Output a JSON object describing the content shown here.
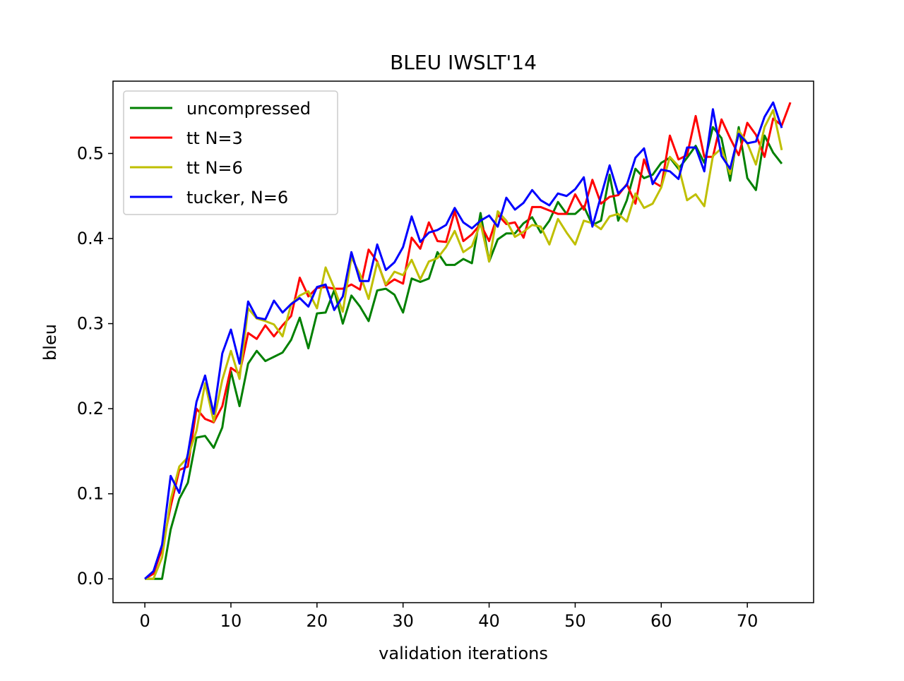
{
  "chart_data": {
    "type": "line",
    "title": "BLEU IWSLT'14",
    "xlabel": "validation iterations",
    "ylabel": "bleu",
    "xlim": [
      -3.7,
      77.7
    ],
    "ylim": [
      -0.028,
      0.585
    ],
    "xticks": [
      0,
      10,
      20,
      30,
      40,
      50,
      60,
      70
    ],
    "yticks": [
      0.0,
      0.1,
      0.2,
      0.3,
      0.4,
      0.5
    ],
    "xtick_labels": [
      "0",
      "10",
      "20",
      "30",
      "40",
      "50",
      "60",
      "70"
    ],
    "ytick_labels": [
      "0.0",
      "0.1",
      "0.2",
      "0.3",
      "0.4",
      "0.5"
    ],
    "grid": false,
    "legend_position": "top-left",
    "series": [
      {
        "name": "uncompressed",
        "color": "#008000",
        "values": [
          0.0,
          0.0,
          0.0,
          0.058,
          0.094,
          0.113,
          0.166,
          0.168,
          0.154,
          0.178,
          0.244,
          0.203,
          0.253,
          0.268,
          0.256,
          0.261,
          0.266,
          0.281,
          0.307,
          0.271,
          0.312,
          0.313,
          0.339,
          0.3,
          0.333,
          0.32,
          0.303,
          0.339,
          0.341,
          0.334,
          0.313,
          0.353,
          0.349,
          0.353,
          0.384,
          0.369,
          0.369,
          0.376,
          0.371,
          0.43,
          0.373,
          0.399,
          0.406,
          0.406,
          0.418,
          0.425,
          0.407,
          0.421,
          0.443,
          0.429,
          0.429,
          0.438,
          0.416,
          0.421,
          0.475,
          0.421,
          0.445,
          0.482,
          0.471,
          0.475,
          0.489,
          0.495,
          0.482,
          0.495,
          0.509,
          0.489,
          0.531,
          0.518,
          0.468,
          0.531,
          0.471,
          0.457,
          0.521,
          0.501,
          0.488
        ]
      },
      {
        "name": "tt N=3",
        "color": "#ff0000",
        "values": [
          0.0,
          0.006,
          0.035,
          0.085,
          0.128,
          0.132,
          0.2,
          0.188,
          0.184,
          0.203,
          0.248,
          0.241,
          0.289,
          0.282,
          0.298,
          0.285,
          0.298,
          0.309,
          0.354,
          0.332,
          0.342,
          0.343,
          0.341,
          0.341,
          0.346,
          0.34,
          0.387,
          0.373,
          0.345,
          0.352,
          0.347,
          0.401,
          0.388,
          0.419,
          0.397,
          0.396,
          0.432,
          0.397,
          0.405,
          0.417,
          0.397,
          0.428,
          0.417,
          0.419,
          0.401,
          0.437,
          0.437,
          0.433,
          0.429,
          0.429,
          0.452,
          0.434,
          0.469,
          0.441,
          0.449,
          0.451,
          0.464,
          0.441,
          0.493,
          0.467,
          0.461,
          0.521,
          0.493,
          0.498,
          0.544,
          0.496,
          0.496,
          0.54,
          0.518,
          0.498,
          0.536,
          0.522,
          0.496,
          0.541,
          0.533,
          0.56
        ]
      },
      {
        "name": "tt N=6",
        "color": "#bfbf00",
        "values": [
          0.0,
          0.0,
          0.025,
          0.093,
          0.132,
          0.143,
          0.174,
          0.23,
          0.185,
          0.234,
          0.268,
          0.235,
          0.318,
          0.306,
          0.303,
          0.299,
          0.285,
          0.323,
          0.333,
          0.338,
          0.318,
          0.366,
          0.342,
          0.314,
          0.378,
          0.358,
          0.329,
          0.372,
          0.346,
          0.361,
          0.357,
          0.375,
          0.352,
          0.373,
          0.377,
          0.39,
          0.409,
          0.384,
          0.391,
          0.418,
          0.373,
          0.432,
          0.421,
          0.402,
          0.408,
          0.416,
          0.414,
          0.393,
          0.423,
          0.407,
          0.393,
          0.421,
          0.418,
          0.411,
          0.426,
          0.429,
          0.42,
          0.453,
          0.436,
          0.441,
          0.46,
          0.496,
          0.485,
          0.445,
          0.452,
          0.438,
          0.497,
          0.506,
          0.476,
          0.527,
          0.512,
          0.487,
          0.531,
          0.551,
          0.504
        ]
      },
      {
        "name": "tucker, N=6",
        "color": "#0000ff",
        "values": [
          0.0,
          0.009,
          0.04,
          0.121,
          0.101,
          0.147,
          0.208,
          0.239,
          0.194,
          0.265,
          0.293,
          0.253,
          0.326,
          0.307,
          0.305,
          0.327,
          0.313,
          0.323,
          0.33,
          0.32,
          0.343,
          0.346,
          0.316,
          0.332,
          0.384,
          0.35,
          0.35,
          0.393,
          0.363,
          0.372,
          0.39,
          0.426,
          0.396,
          0.407,
          0.41,
          0.416,
          0.436,
          0.419,
          0.412,
          0.421,
          0.427,
          0.414,
          0.448,
          0.434,
          0.442,
          0.457,
          0.445,
          0.439,
          0.453,
          0.45,
          0.458,
          0.472,
          0.414,
          0.45,
          0.486,
          0.453,
          0.463,
          0.495,
          0.506,
          0.464,
          0.481,
          0.479,
          0.47,
          0.507,
          0.507,
          0.479,
          0.552,
          0.497,
          0.482,
          0.523,
          0.512,
          0.514,
          0.543,
          0.56,
          0.53
        ]
      }
    ]
  }
}
